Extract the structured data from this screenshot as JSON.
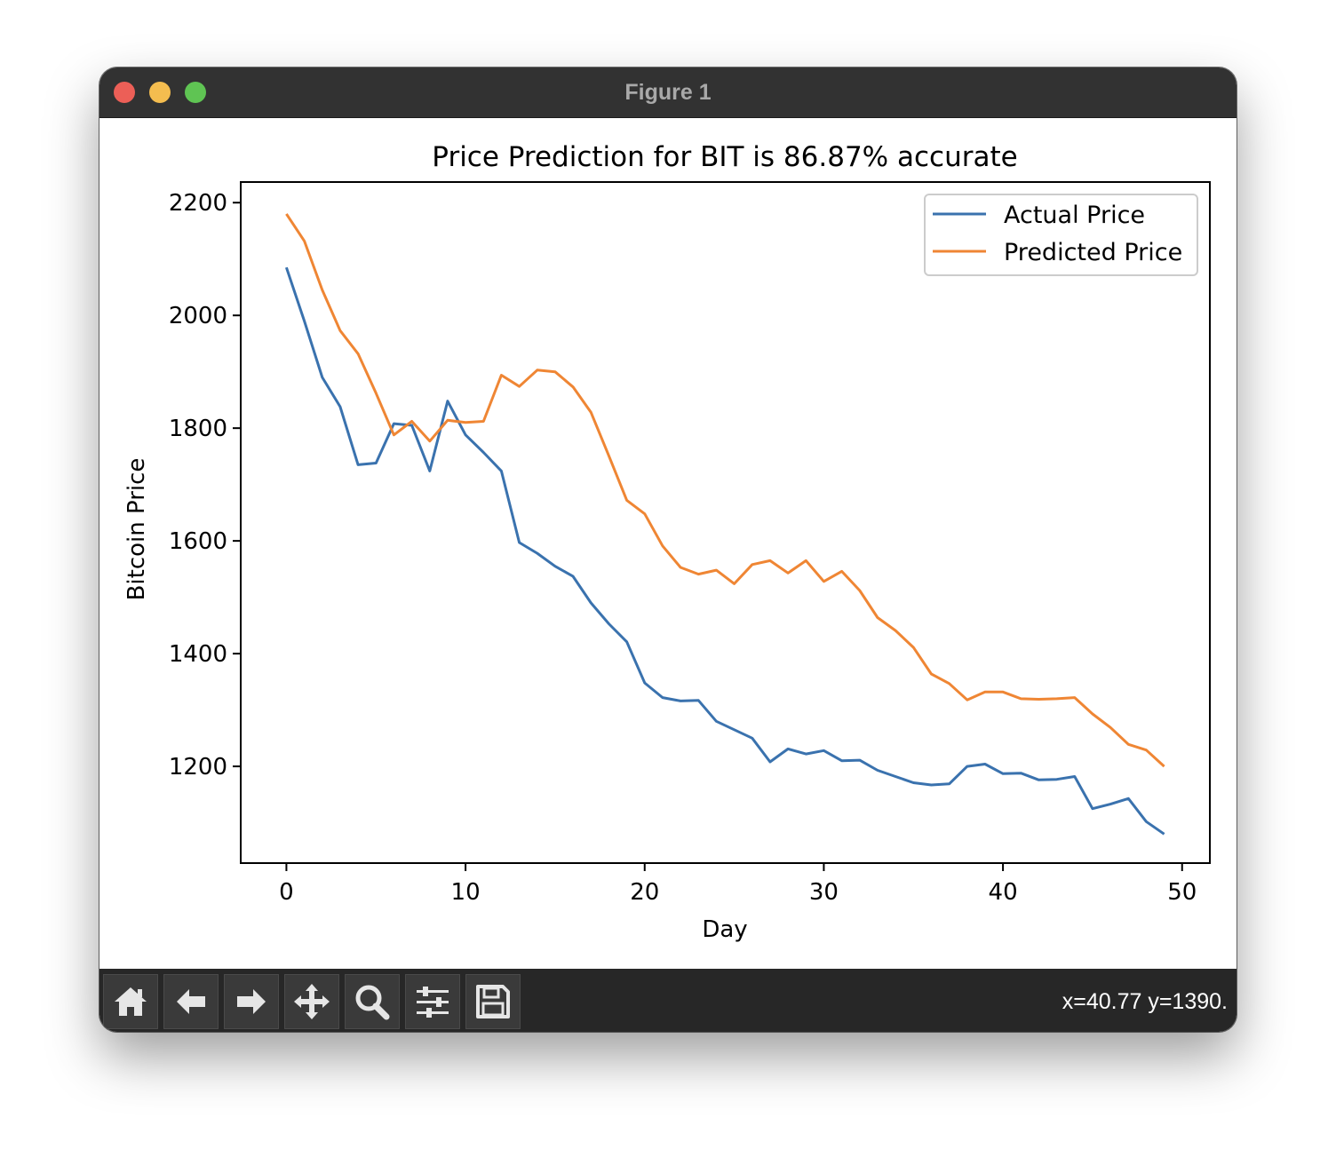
{
  "window": {
    "title": "Figure 1"
  },
  "toolbar": {
    "buttons": [
      {
        "name": "home-button",
        "icon": "home-icon"
      },
      {
        "name": "back-button",
        "icon": "arrow-left-icon"
      },
      {
        "name": "forward-button",
        "icon": "arrow-right-icon"
      },
      {
        "name": "pan-button",
        "icon": "move-icon"
      },
      {
        "name": "zoom-button",
        "icon": "magnifier-icon"
      },
      {
        "name": "configure-subplots-button",
        "icon": "sliders-icon"
      },
      {
        "name": "save-button",
        "icon": "floppy-disk-icon"
      }
    ],
    "coords": "x=40.77 y=1390."
  },
  "chart_data": {
    "type": "line",
    "title": "Price Prediction for BIT is 86.87% accurate",
    "xlabel": "Day",
    "ylabel": "Bitcoin Price",
    "xlim": [
      -2.5,
      51.5
    ],
    "ylim": [
      1030,
      2235
    ],
    "xticks": [
      0,
      10,
      20,
      30,
      40,
      50
    ],
    "yticks": [
      1200,
      1400,
      1600,
      1800,
      2000,
      2200
    ],
    "grid": false,
    "legend": "top-right",
    "x": [
      0,
      1,
      2,
      3,
      4,
      5,
      6,
      7,
      8,
      9,
      10,
      11,
      12,
      13,
      14,
      15,
      16,
      17,
      18,
      19,
      20,
      21,
      22,
      23,
      24,
      25,
      26,
      27,
      28,
      29,
      30,
      31,
      32,
      33,
      34,
      35,
      36,
      37,
      38,
      39,
      40,
      41,
      42,
      43,
      44,
      45,
      46,
      47,
      48,
      49
    ],
    "series": [
      {
        "name": "Actual Price",
        "color": "#3a72ae",
        "values": [
          2085,
          1990,
          1890,
          1838,
          1735,
          1738,
          1808,
          1805,
          1724,
          1848,
          1788,
          1757,
          1724,
          1597,
          1578,
          1555,
          1537,
          1490,
          1453,
          1421,
          1348,
          1322,
          1316,
          1317,
          1280,
          1265,
          1250,
          1208,
          1231,
          1222,
          1228,
          1210,
          1211,
          1193,
          1182,
          1171,
          1167,
          1169,
          1200,
          1204,
          1187,
          1188,
          1176,
          1177,
          1182,
          1125,
          1133,
          1143,
          1102,
          1080
        ]
      },
      {
        "name": "Predicted Price",
        "color": "#ef8634",
        "values": [
          2180,
          2132,
          2045,
          1973,
          1932,
          1862,
          1788,
          1812,
          1777,
          1814,
          1810,
          1812,
          1894,
          1874,
          1903,
          1900,
          1873,
          1828,
          1751,
          1672,
          1648,
          1591,
          1553,
          1541,
          1548,
          1524,
          1558,
          1565,
          1543,
          1565,
          1528,
          1546,
          1512,
          1464,
          1441,
          1411,
          1364,
          1347,
          1318,
          1332,
          1332,
          1320,
          1319,
          1320,
          1322,
          1293,
          1269,
          1239,
          1229,
          1200
        ]
      }
    ]
  }
}
